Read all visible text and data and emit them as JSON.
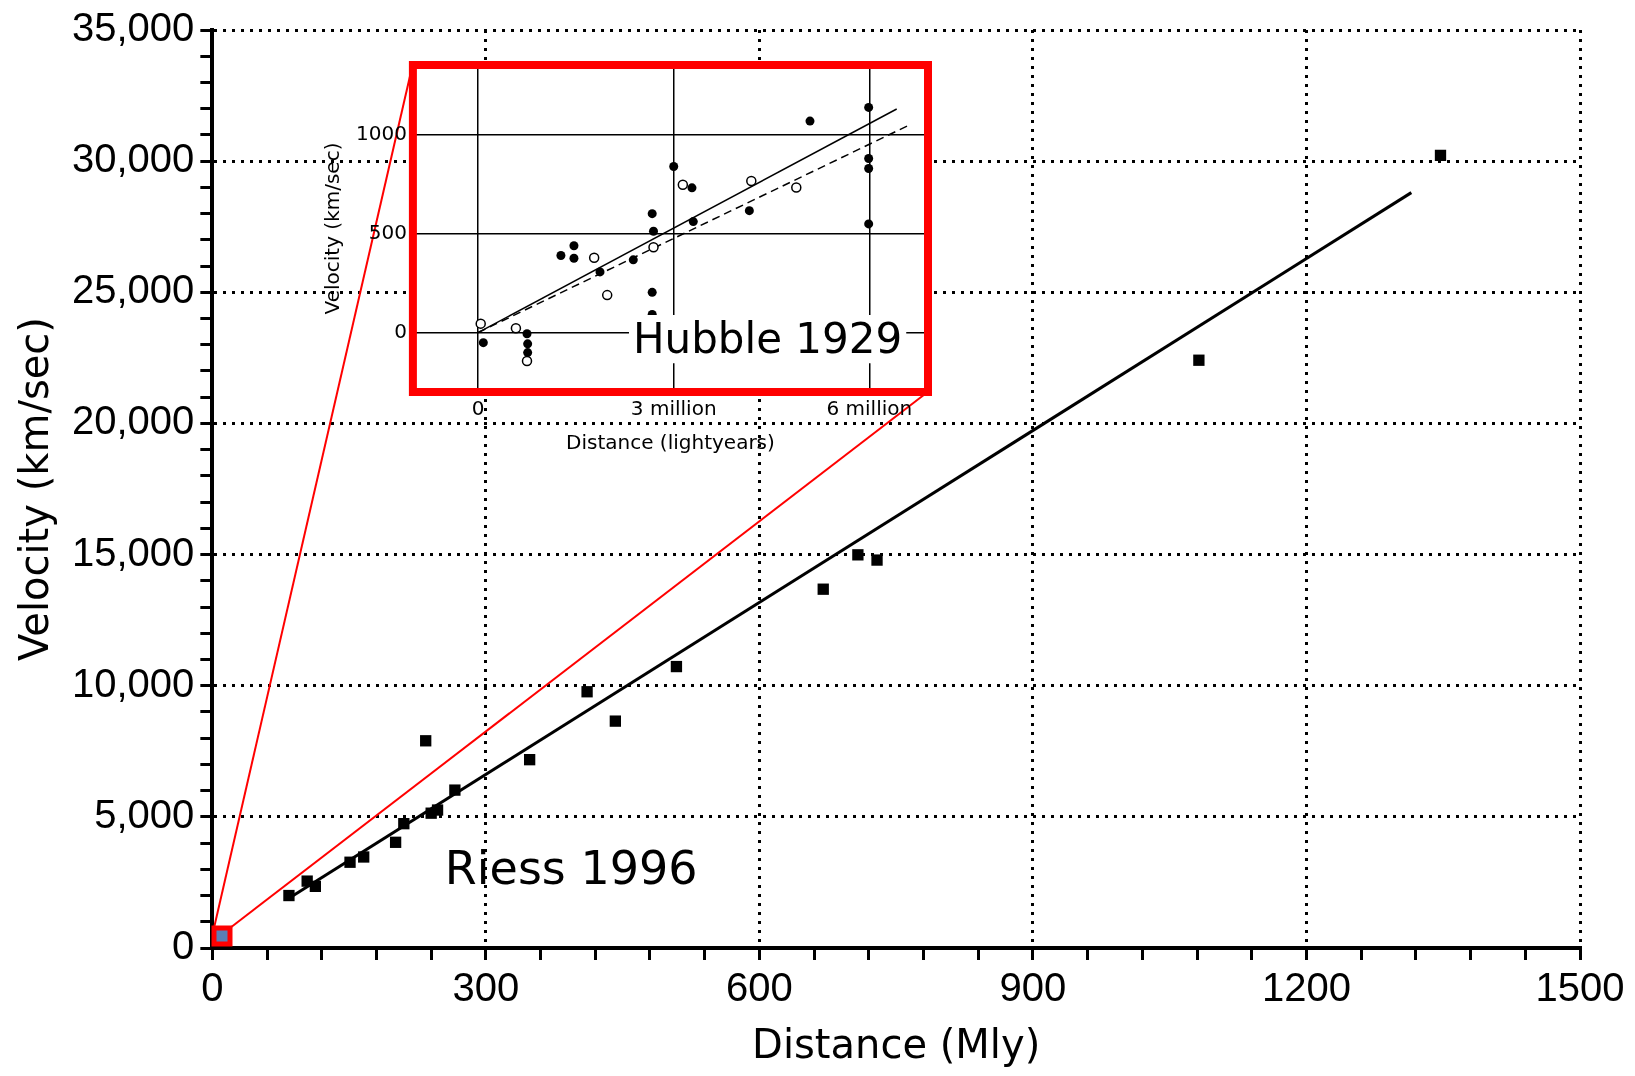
{
  "chart_data": [
    {
      "type": "scatter",
      "xlabel": "Distance (Mly)",
      "ylabel": "Velocity (km/sec)",
      "xlim": [
        0,
        1500
      ],
      "xticks": [
        0,
        {
          "value": 60,
          "label": null
        },
        {
          "value": 120,
          "label": null
        },
        {
          "value": 180,
          "label": null
        },
        {
          "value": 240,
          "label": null
        },
        300,
        {
          "value": 360,
          "label": null
        },
        {
          "value": 420,
          "label": null
        },
        {
          "value": 480,
          "label": null
        },
        {
          "value": 540,
          "label": null
        },
        600,
        {
          "value": 660,
          "label": null
        },
        {
          "value": 720,
          "label": null
        },
        {
          "value": 780,
          "label": null
        },
        {
          "value": 840,
          "label": null
        },
        900,
        {
          "value": 960,
          "label": null
        },
        {
          "value": 1020,
          "label": null
        },
        {
          "value": 1080,
          "label": null
        },
        {
          "value": 1140,
          "label": null
        },
        1200,
        {
          "value": 1260,
          "label": null
        },
        {
          "value": 1320,
          "label": null
        },
        {
          "value": 1380,
          "label": null
        },
        {
          "value": 1440,
          "label": null
        },
        1500
      ],
      "ylim": [
        0,
        35000
      ],
      "yticks": [
        0,
        {
          "value": 1000,
          "label": null
        },
        {
          "value": 2000,
          "label": null
        },
        {
          "value": 3000,
          "label": null
        },
        {
          "value": 4000,
          "label": null
        },
        {
          "value": 5000,
          "label": "5,000"
        },
        {
          "value": 6000,
          "label": null
        },
        {
          "value": 7000,
          "label": null
        },
        {
          "value": 8000,
          "label": null
        },
        {
          "value": 9000,
          "label": null
        },
        {
          "value": 10000,
          "label": "10,000"
        },
        {
          "value": 11000,
          "label": null
        },
        {
          "value": 12000,
          "label": null
        },
        {
          "value": 13000,
          "label": null
        },
        {
          "value": 14000,
          "label": null
        },
        {
          "value": 15000,
          "label": "15,000"
        },
        {
          "value": 16000,
          "label": null
        },
        {
          "value": 17000,
          "label": null
        },
        {
          "value": 18000,
          "label": null
        },
        {
          "value": 19000,
          "label": null
        },
        {
          "value": 20000,
          "label": "20,000"
        },
        {
          "value": 21000,
          "label": null
        },
        {
          "value": 22000,
          "label": null
        },
        {
          "value": 23000,
          "label": null
        },
        {
          "value": 24000,
          "label": null
        },
        {
          "value": 25000,
          "label": "25,000"
        },
        {
          "value": 26000,
          "label": null
        },
        {
          "value": 27000,
          "label": null
        },
        {
          "value": 28000,
          "label": null
        },
        {
          "value": 29000,
          "label": null
        },
        {
          "value": 30000,
          "label": "30,000"
        },
        {
          "value": 31000,
          "label": null
        },
        {
          "value": 32000,
          "label": null
        },
        {
          "value": 33000,
          "label": null
        },
        {
          "value": 34000,
          "label": null
        },
        {
          "value": 35000,
          "label": "35,000"
        }
      ],
      "grid": true,
      "legend": false,
      "annotations": [
        "Riess 1996"
      ],
      "series": [
        {
          "type": "scatter",
          "color": "#000000",
          "marker": "square",
          "x": [
            84,
            104,
            113,
            151,
            166,
            201,
            210,
            234,
            240,
            247,
            266,
            348,
            411,
            442,
            509,
            670,
            708,
            729,
            1082,
            1347
          ],
          "values": [
            2000,
            2550,
            2350,
            3270,
            3470,
            4030,
            4740,
            7900,
            5140,
            5260,
            6020,
            7180,
            9770,
            8650,
            10730,
            13680,
            14990,
            14790,
            22410,
            30220
          ]
        },
        {
          "type": "line",
          "color": "#000000",
          "marker": "none",
          "line_style": "solid",
          "x": [
            84,
            1315
          ],
          "values": [
            1900,
            28800
          ]
        }
      ]
    },
    {
      "type": "scatter",
      "xlabel": "Distance (lightyears)",
      "ylabel": "Velocity (km/sec)",
      "xlim": [
        -1.0,
        6.9
      ],
      "xticks": [
        0,
        {
          "value": 3,
          "label": "3 million"
        },
        {
          "value": 6,
          "label": "6 million"
        }
      ],
      "ylim": [
        -300,
        1350
      ],
      "yticks": [
        0,
        500,
        1000
      ],
      "grid": true,
      "legend": false,
      "annotations": [
        "Hubble 1929"
      ],
      "series": [
        {
          "type": "scatter",
          "color": "#000000",
          "marker": "circle",
          "x": [
            0.08,
            0.75,
            0.76,
            0.76,
            1.27,
            1.47,
            1.47,
            1.87,
            2.38,
            2.67,
            2.69,
            2.67,
            2.67,
            3.0,
            3.28,
            3.3,
            4.16,
            5.09,
            5.99,
            5.99,
            5.99,
            5.99
          ],
          "values": [
            -51,
            -6,
            -57,
            -101,
            389,
            438,
            375,
            306,
            367,
            600,
            511,
            203,
            91,
            838,
            730,
            560,
            615,
            1067,
            1136,
            878,
            828,
            548
          ]
        },
        {
          "type": "scatter",
          "color": "#000000",
          "marker": "circle",
          "x": [
            0.04,
            0.58,
            0.75,
            1.78,
            1.98,
            2.69,
            3.14,
            4.19,
            4.88
          ],
          "values": [
            45,
            22,
            -144,
            377,
            189,
            430,
            746,
            765,
            732
          ]
        },
        {
          "type": "line",
          "color": "#000000",
          "marker": "none",
          "line_style": "solid",
          "x": [
            0,
            6.42
          ],
          "values": [
            0,
            1128
          ]
        },
        {
          "type": "line",
          "color": "#000000",
          "marker": "none",
          "line_style": "dashed",
          "x": [
            0,
            6.6
          ],
          "values": [
            0,
            1045
          ]
        }
      ]
    }
  ]
}
